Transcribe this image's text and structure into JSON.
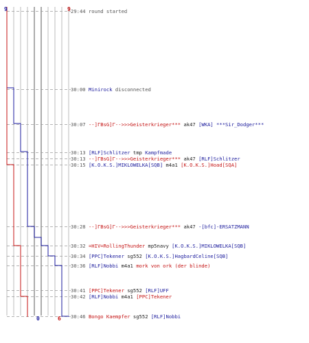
{
  "colors": {
    "blue": "#1a1a9c",
    "red": "#c41212",
    "text": "#222222",
    "gray": "#555555"
  },
  "chart_data": {
    "type": "line",
    "series": [
      {
        "values": [
          9,
          9,
          8,
          7,
          6,
          5,
          4,
          3,
          2,
          1,
          0
        ]
      },
      {
        "values": [
          9,
          9,
          9,
          8,
          8,
          7,
          7,
          7,
          7,
          6,
          6
        ]
      }
    ],
    "blue_start": "9",
    "red_start": "9",
    "blue_end": "0",
    "red_end": "6"
  },
  "events": [
    {
      "y": 16,
      "parts": [
        [
          "t",
          "29:44"
        ],
        [
          "g",
          " round started"
        ]
      ]
    },
    {
      "y": 130,
      "parts": [
        [
          "t",
          "30:00"
        ],
        [
          "k",
          " "
        ],
        [
          "b",
          "Minirock"
        ],
        [
          "g",
          " disconnected"
        ]
      ]
    },
    {
      "y": 181,
      "parts": [
        [
          "t",
          "30:07"
        ],
        [
          "k",
          " "
        ],
        [
          "r",
          "--]ΓBsG]Γ-->>>Geisterkrieger***"
        ],
        [
          "k",
          " ak47 "
        ],
        [
          "b",
          "[WKA] ***Sir_Dodger***"
        ]
      ]
    },
    {
      "y": 222,
      "parts": [
        [
          "t",
          "30:13"
        ],
        [
          "k",
          " "
        ],
        [
          "b",
          "[RLF]Schlitzer"
        ],
        [
          "k",
          " tmp "
        ],
        [
          "b",
          "Kampfmade"
        ]
      ]
    },
    {
      "y": 231,
      "parts": [
        [
          "t",
          "30:13"
        ],
        [
          "k",
          " "
        ],
        [
          "r",
          "--]ΓBsG]Γ-->>>Geisterkrieger***"
        ],
        [
          "k",
          " ak47 "
        ],
        [
          "b",
          "[RLF]Schlitzer"
        ]
      ]
    },
    {
      "y": 240,
      "parts": [
        [
          "t",
          "30:15"
        ],
        [
          "k",
          " "
        ],
        [
          "b",
          "[K.O.K.S.]MIKLOWELKA[SQB]"
        ],
        [
          "k",
          " m4a1 "
        ],
        [
          "r",
          "[K.O.K.S.]Hoad[SQA]"
        ]
      ]
    },
    {
      "y": 330,
      "parts": [
        [
          "t",
          "30:28"
        ],
        [
          "k",
          " "
        ],
        [
          "r",
          "--]ΓBsG]Γ-->>>Geisterkrieger***"
        ],
        [
          "k",
          " ak47 "
        ],
        [
          "b",
          "-[bfc]-ERSATZMANN"
        ]
      ]
    },
    {
      "y": 358,
      "parts": [
        [
          "t",
          "30:32"
        ],
        [
          "k",
          " "
        ],
        [
          "r",
          "=HIV=RollingThunder"
        ],
        [
          "k",
          " mp5navy "
        ],
        [
          "b",
          "[K.O.K.S.]MIKLOWELKA[SQB]"
        ]
      ]
    },
    {
      "y": 373,
      "parts": [
        [
          "t",
          "30:34"
        ],
        [
          "k",
          " "
        ],
        [
          "b",
          "[PPC]Tekener"
        ],
        [
          "k",
          " sg552 "
        ],
        [
          "b",
          "[K.O.K.S.]HagbardCeline[SQB]"
        ]
      ]
    },
    {
      "y": 387,
      "parts": [
        [
          "t",
          "30:36"
        ],
        [
          "k",
          " "
        ],
        [
          "b",
          "[RLF]Nobbi"
        ],
        [
          "k",
          " m4a1 "
        ],
        [
          "r",
          "mork von ork (der blinde)"
        ]
      ]
    },
    {
      "y": 423,
      "parts": [
        [
          "t",
          "30:41"
        ],
        [
          "k",
          " "
        ],
        [
          "r",
          "[PPC]Tekener"
        ],
        [
          "k",
          " sg552 "
        ],
        [
          "b",
          "[RLF]UFF"
        ]
      ]
    },
    {
      "y": 432,
      "parts": [
        [
          "t",
          "30:42"
        ],
        [
          "k",
          " "
        ],
        [
          "b",
          "[RLF]Nobbi"
        ],
        [
          "k",
          " m4a1 "
        ],
        [
          "r",
          "[PPC]Tekener"
        ]
      ]
    },
    {
      "y": 461,
      "parts": [
        [
          "t",
          "30:46"
        ],
        [
          "k",
          " "
        ],
        [
          "r",
          "Bongo Kaempfer"
        ],
        [
          "k",
          " sg552 "
        ],
        [
          "b",
          "[RLF]Nobbi"
        ]
      ]
    }
  ]
}
